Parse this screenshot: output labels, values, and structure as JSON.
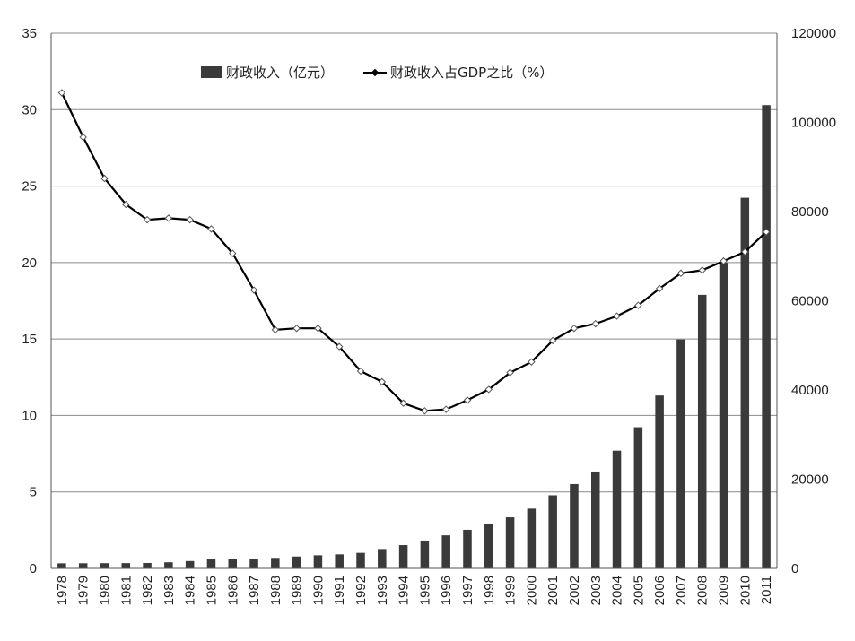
{
  "chart_data": {
    "type": "bar",
    "categories": [
      "1978",
      "1979",
      "1980",
      "1981",
      "1982",
      "1983",
      "1984",
      "1985",
      "1986",
      "1987",
      "1988",
      "1989",
      "1990",
      "1991",
      "1992",
      "1993",
      "1994",
      "1995",
      "1996",
      "1997",
      "1998",
      "1999",
      "2000",
      "2001",
      "2002",
      "2003",
      "2004",
      "2005",
      "2006",
      "2007",
      "2008",
      "2009",
      "2010",
      "2011"
    ],
    "series": [
      {
        "name": "财政收入（亿元）",
        "type": "bar",
        "axis": "right",
        "color": "#3a3a3a",
        "values": [
          1132,
          1146,
          1160,
          1176,
          1212,
          1367,
          1643,
          2005,
          2122,
          2199,
          2357,
          2665,
          2937,
          3149,
          3483,
          4349,
          5218,
          6242,
          7408,
          8651,
          9876,
          11444,
          13395,
          16386,
          18904,
          21715,
          26396,
          31649,
          38760,
          51322,
          61330,
          68518,
          83102,
          103874
        ]
      },
      {
        "name": "财政收入占GDP之比（%）",
        "type": "line",
        "axis": "left",
        "color": "#000000",
        "values": [
          31.1,
          28.2,
          25.5,
          23.8,
          22.8,
          22.9,
          22.8,
          22.2,
          20.6,
          18.2,
          15.6,
          15.7,
          15.7,
          14.5,
          12.9,
          12.2,
          10.8,
          10.3,
          10.4,
          11.0,
          11.7,
          12.8,
          13.5,
          14.9,
          15.7,
          16.0,
          16.5,
          17.2,
          18.3,
          19.3,
          19.5,
          20.1,
          20.7,
          22.0
        ]
      }
    ],
    "y_left": {
      "ylim": [
        0,
        35
      ],
      "ticks": [
        "0",
        "5",
        "10",
        "15",
        "20",
        "25",
        "30",
        "35"
      ]
    },
    "y_right": {
      "ylim": [
        0,
        120000
      ],
      "ticks": [
        "0",
        "20000",
        "40000",
        "60000",
        "80000",
        "100000",
        "120000"
      ]
    },
    "grid": true,
    "legend_position": "top-left"
  }
}
